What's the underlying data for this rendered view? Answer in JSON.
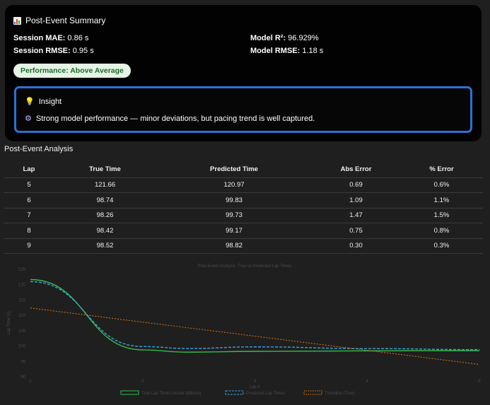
{
  "summary": {
    "title": "Post-Event Summary",
    "icon": "bar-chart-icon",
    "session_mae_label": "Session MAE:",
    "session_mae_value": "0.86 s",
    "session_rmse_label": "Session RMSE:",
    "session_rmse_value": "0.95 s",
    "model_r2_label": "Model R²:",
    "model_r2_value": "96.929%",
    "model_rmse_label": "Model RMSE:",
    "model_rmse_value": "1.18 s",
    "badge": "Performance: Above Average",
    "insight_title": "Insight",
    "insight_text": "Strong model performance — minor deviations, but pacing trend is well captured.",
    "accent_color": "#2a72d6"
  },
  "analysis": {
    "title": "Post-Event Analysis",
    "columns": [
      "Lap",
      "True Time",
      "Predicted Time",
      "Abs Error",
      "% Error"
    ],
    "rows": [
      [
        "5",
        "121.66",
        "120.97",
        "0.69",
        "0.6%"
      ],
      [
        "6",
        "98.74",
        "99.83",
        "1.09",
        "1.1%"
      ],
      [
        "7",
        "98.26",
        "99.73",
        "1.47",
        "1.5%"
      ],
      [
        "8",
        "98.42",
        "99.17",
        "0.75",
        "0.8%"
      ],
      [
        "9",
        "98.52",
        "98.82",
        "0.30",
        "0.3%"
      ]
    ]
  },
  "chart_data": {
    "type": "line",
    "title": "Post-Event Analysis: True vs Predicted Lap Times",
    "xlabel": "Lap #",
    "ylabel": "Lap Time (s)",
    "x": [
      1,
      2,
      3,
      4,
      5
    ],
    "xlim": [
      1,
      5
    ],
    "ylim": [
      90,
      125
    ],
    "yticks": [
      90,
      95,
      100,
      105,
      110,
      115,
      120,
      125
    ],
    "grid": false,
    "legend_position": "bottom",
    "series": [
      {
        "name": "True Lap Times (visual fallback)",
        "color": "#2fbf4a",
        "style": "solid",
        "x": [
          1,
          2,
          2.4,
          3,
          4,
          5
        ],
        "values": [
          121.66,
          98.74,
          98.0,
          98.26,
          98.42,
          98.52
        ]
      },
      {
        "name": "Predicted Lap Times",
        "color": "#3aa0e0",
        "style": "dashed",
        "x": [
          1,
          2,
          2.4,
          3,
          4,
          5
        ],
        "values": [
          120.97,
          99.83,
          99.2,
          99.73,
          99.17,
          98.82
        ]
      },
      {
        "name": "Trendline (True)",
        "color": "#e07a10",
        "style": "dotted",
        "x": [
          1,
          5
        ],
        "values": [
          112.4,
          94.0
        ]
      }
    ]
  }
}
